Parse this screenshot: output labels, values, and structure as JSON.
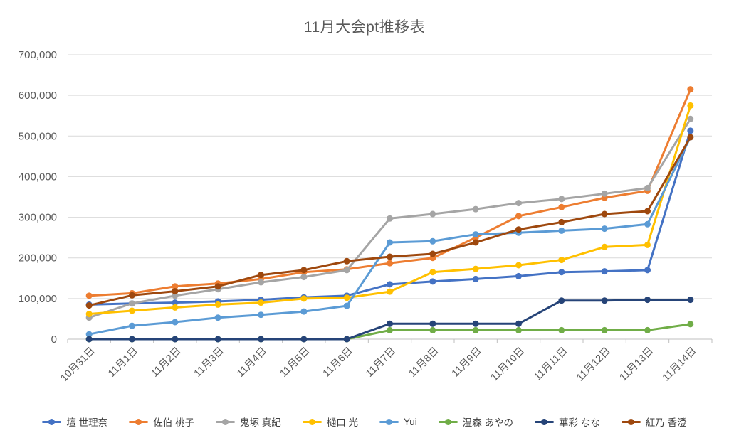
{
  "title": "11月大会pt推移表",
  "chart_data": {
    "type": "line",
    "title": "11月大会pt推移表",
    "categories": [
      "10月31日",
      "11月1日",
      "11月2日",
      "11月3日",
      "11月4日",
      "11月5日",
      "11月6日",
      "11月7日",
      "11月8日",
      "11月9日",
      "11月10日",
      "11月11日",
      "11月12日",
      "11月13日",
      "11月14日"
    ],
    "series": [
      {
        "name": "壇 世理奈",
        "color": "#4472C4",
        "values": [
          85000,
          88000,
          90000,
          93000,
          97000,
          103000,
          107000,
          135000,
          142000,
          148000,
          155000,
          165000,
          167000,
          170000,
          513000
        ]
      },
      {
        "name": "佐伯 桃子",
        "color": "#ED7D31",
        "values": [
          107000,
          113000,
          130000,
          137000,
          148000,
          165000,
          172000,
          187000,
          200000,
          250000,
          303000,
          325000,
          348000,
          365000,
          615000
        ]
      },
      {
        "name": "鬼塚 真紀",
        "color": "#A5A5A5",
        "values": [
          53000,
          88000,
          107000,
          123000,
          140000,
          153000,
          170000,
          297000,
          308000,
          320000,
          335000,
          345000,
          358000,
          372000,
          542000
        ]
      },
      {
        "name": "樋口 光",
        "color": "#FFC000",
        "values": [
          62000,
          70000,
          78000,
          85000,
          90000,
          100000,
          102000,
          117000,
          165000,
          173000,
          182000,
          195000,
          227000,
          232000,
          575000
        ]
      },
      {
        "name": "Yui",
        "color": "#5B9BD5",
        "values": [
          12000,
          33000,
          42000,
          53000,
          60000,
          68000,
          82000,
          238000,
          241000,
          258000,
          262000,
          267000,
          272000,
          283000,
          497000
        ]
      },
      {
        "name": "温森 あやの",
        "color": "#70AD47",
        "values": [
          0,
          0,
          0,
          0,
          0,
          0,
          0,
          22000,
          22000,
          22000,
          22000,
          22000,
          22000,
          22000,
          37000
        ]
      },
      {
        "name": "華彩 なな",
        "color": "#264478",
        "values": [
          0,
          0,
          0,
          0,
          0,
          0,
          0,
          38000,
          38000,
          38000,
          38000,
          95000,
          95000,
          97000,
          97000
        ]
      },
      {
        "name": "紅乃 香澄",
        "color": "#9E480E",
        "values": [
          83000,
          108000,
          118000,
          130000,
          158000,
          170000,
          192000,
          203000,
          210000,
          238000,
          270000,
          288000,
          308000,
          315000,
          497000
        ]
      }
    ],
    "ylim": [
      0,
      700000
    ],
    "ytick_step": 100000,
    "ytick_labels": [
      "0",
      "100,000",
      "200,000",
      "300,000",
      "400,000",
      "500,000",
      "600,000",
      "700,000"
    ],
    "grid": true,
    "legend_position": "bottom",
    "xlabel": "",
    "ylabel": ""
  }
}
